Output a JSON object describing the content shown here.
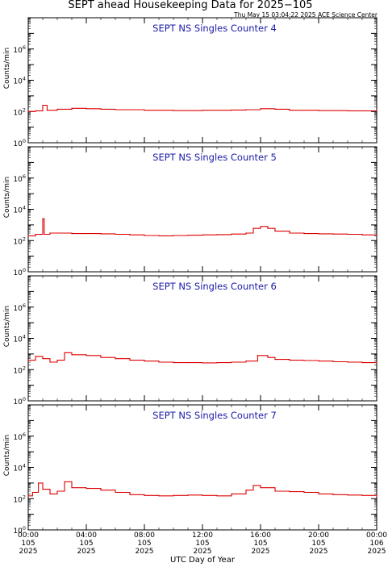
{
  "title": "SEPT ahead Housekeeping Data for 2025−105",
  "stamp": "Thu May 15 03:04:22 2025 ACE Science Center",
  "xlabel": "UTC Day of Year",
  "ylabel": "Counts/min",
  "colors": {
    "series": "#dd0000",
    "panel_title": "#1a1aa8",
    "axis": "#000000"
  },
  "x_ticks": [
    {
      "time": "00:00",
      "doy": "105",
      "year": "2025",
      "hour": 0
    },
    {
      "time": "04:00",
      "doy": "105",
      "year": "2025",
      "hour": 4
    },
    {
      "time": "08:00",
      "doy": "105",
      "year": "2025",
      "hour": 8
    },
    {
      "time": "12:00",
      "doy": "105",
      "year": "2025",
      "hour": 12
    },
    {
      "time": "16:00",
      "doy": "105",
      "year": "2025",
      "hour": 16
    },
    {
      "time": "20:00",
      "doy": "105",
      "year": "2025",
      "hour": 20
    },
    {
      "time": "00:00",
      "doy": "106",
      "year": "2025",
      "hour": 24
    }
  ],
  "y_ticks": [
    {
      "base": "10",
      "exp": "0",
      "value": 1
    },
    {
      "base": "10",
      "exp": "2",
      "value": 100
    },
    {
      "base": "10",
      "exp": "4",
      "value": 10000
    },
    {
      "base": "10",
      "exp": "6",
      "value": 1000000
    }
  ],
  "chart_data": [
    {
      "type": "line",
      "title": "SEPT NS Singles Counter 4",
      "xlim": [
        0,
        24
      ],
      "ylim": [
        1,
        100000000
      ],
      "yscale": "log",
      "points": [
        [
          0,
          100
        ],
        [
          0.5,
          110
        ],
        [
          1,
          250
        ],
        [
          1.3,
          120
        ],
        [
          2,
          140
        ],
        [
          3,
          160
        ],
        [
          4,
          150
        ],
        [
          5,
          140
        ],
        [
          6,
          130
        ],
        [
          8,
          120
        ],
        [
          10,
          115
        ],
        [
          12,
          120
        ],
        [
          14,
          125
        ],
        [
          15,
          130
        ],
        [
          16,
          150
        ],
        [
          17,
          140
        ],
        [
          18,
          120
        ],
        [
          20,
          115
        ],
        [
          22,
          110
        ],
        [
          24,
          110
        ]
      ]
    },
    {
      "type": "line",
      "title": "SEPT NS Singles Counter 5",
      "xlim": [
        0,
        24
      ],
      "ylim": [
        1,
        100000000
      ],
      "yscale": "log",
      "points": [
        [
          0,
          200
        ],
        [
          0.5,
          250
        ],
        [
          0.9,
          250
        ],
        [
          1,
          2500
        ],
        [
          1.1,
          250
        ],
        [
          1.5,
          300
        ],
        [
          2,
          300
        ],
        [
          3,
          280
        ],
        [
          4,
          280
        ],
        [
          5,
          270
        ],
        [
          6,
          250
        ],
        [
          7,
          230
        ],
        [
          8,
          210
        ],
        [
          9,
          200
        ],
        [
          10,
          210
        ],
        [
          11,
          220
        ],
        [
          12,
          230
        ],
        [
          13,
          240
        ],
        [
          14,
          260
        ],
        [
          15,
          300
        ],
        [
          15.5,
          600
        ],
        [
          16,
          800
        ],
        [
          16.5,
          600
        ],
        [
          17,
          400
        ],
        [
          18,
          300
        ],
        [
          19,
          280
        ],
        [
          20,
          270
        ],
        [
          21,
          260
        ],
        [
          22,
          250
        ],
        [
          23,
          230
        ],
        [
          24,
          220
        ]
      ]
    },
    {
      "type": "line",
      "title": "SEPT NS Singles Counter 6",
      "xlim": [
        0,
        24
      ],
      "ylim": [
        1,
        100000000
      ],
      "yscale": "log",
      "points": [
        [
          0,
          400
        ],
        [
          0.5,
          700
        ],
        [
          1,
          500
        ],
        [
          1.5,
          300
        ],
        [
          2,
          400
        ],
        [
          2.5,
          1200
        ],
        [
          3,
          900
        ],
        [
          4,
          800
        ],
        [
          5,
          600
        ],
        [
          6,
          500
        ],
        [
          7,
          400
        ],
        [
          8,
          350
        ],
        [
          9,
          300
        ],
        [
          10,
          280
        ],
        [
          11,
          280
        ],
        [
          12,
          270
        ],
        [
          13,
          280
        ],
        [
          14,
          300
        ],
        [
          15,
          350
        ],
        [
          15.8,
          800
        ],
        [
          16.5,
          600
        ],
        [
          17,
          450
        ],
        [
          18,
          400
        ],
        [
          19,
          380
        ],
        [
          20,
          350
        ],
        [
          21,
          320
        ],
        [
          22,
          300
        ],
        [
          23,
          280
        ],
        [
          24,
          280
        ]
      ]
    },
    {
      "type": "line",
      "title": "SEPT NS Singles Counter 7",
      "xlim": [
        0,
        24
      ],
      "ylim": [
        1,
        100000000
      ],
      "yscale": "log",
      "points": [
        [
          0,
          150
        ],
        [
          0.3,
          250
        ],
        [
          0.7,
          1000
        ],
        [
          1,
          400
        ],
        [
          1.5,
          200
        ],
        [
          2,
          300
        ],
        [
          2.5,
          1200
        ],
        [
          3,
          500
        ],
        [
          4,
          450
        ],
        [
          5,
          350
        ],
        [
          6,
          250
        ],
        [
          7,
          180
        ],
        [
          8,
          160
        ],
        [
          9,
          150
        ],
        [
          10,
          160
        ],
        [
          11,
          170
        ],
        [
          12,
          160
        ],
        [
          13,
          150
        ],
        [
          14,
          200
        ],
        [
          15,
          350
        ],
        [
          15.5,
          700
        ],
        [
          16,
          500
        ],
        [
          17,
          300
        ],
        [
          18,
          280
        ],
        [
          19,
          250
        ],
        [
          20,
          200
        ],
        [
          21,
          180
        ],
        [
          22,
          170
        ],
        [
          23,
          160
        ],
        [
          24,
          140
        ]
      ]
    }
  ]
}
